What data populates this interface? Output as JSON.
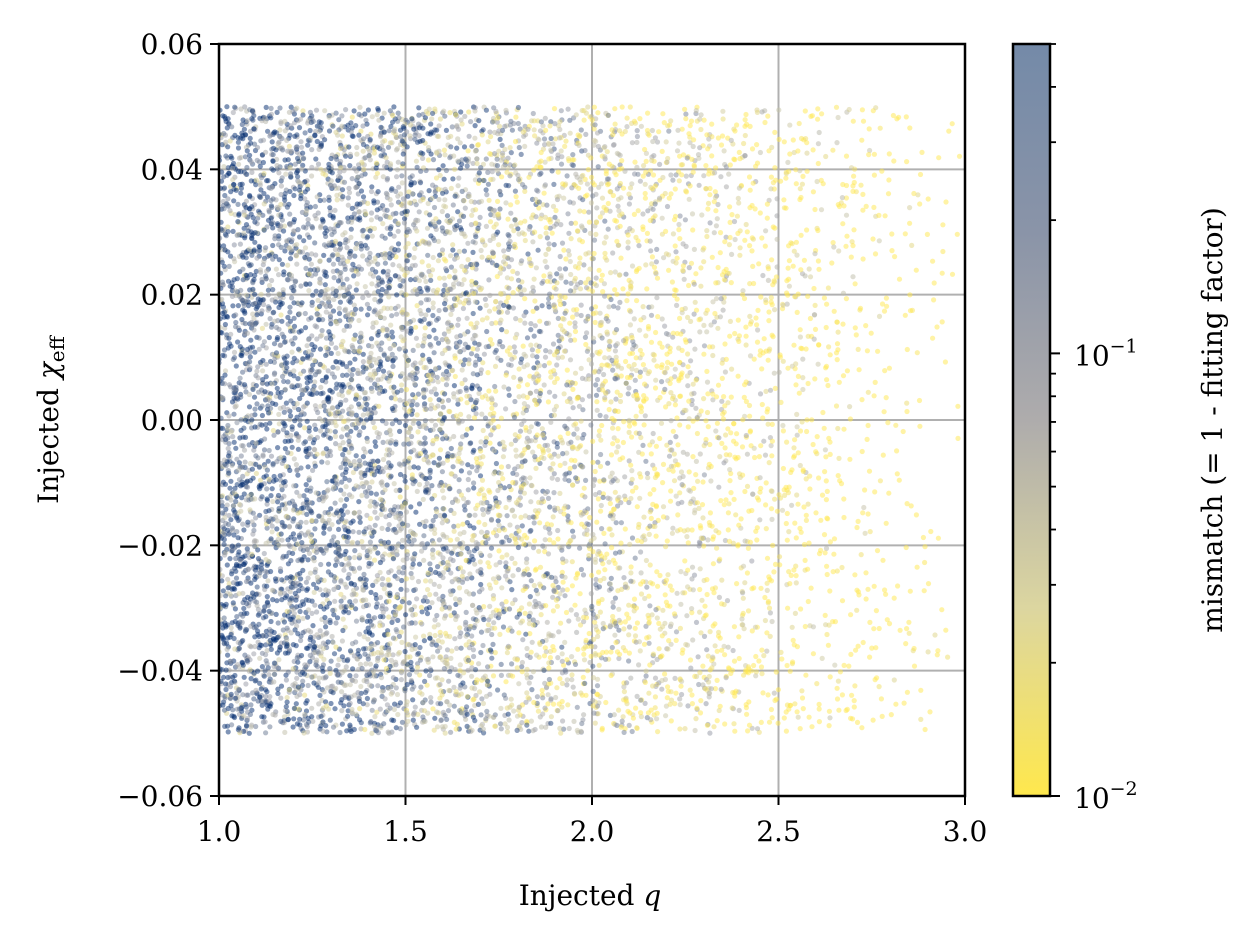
{
  "chart_data": {
    "type": "scatter",
    "title": "",
    "xlabel": "Injected q",
    "ylabel": "Injected χ_eff",
    "xlim": [
      1.0,
      3.0
    ],
    "ylim": [
      -0.06,
      0.06
    ],
    "x_ticks": [
      "1.0",
      "1.5",
      "2.0",
      "2.5",
      "3.0"
    ],
    "y_ticks": [
      "0.06",
      "0.04",
      "0.02",
      "0.00",
      "−0.02",
      "−0.04",
      "−0.06"
    ],
    "grid": true,
    "colorbar": {
      "label": "mismatch (= 1 - fitting factor)",
      "scale": "log",
      "range": [
        0.01,
        0.5
      ],
      "ticks": [
        {
          "value": 0.1,
          "base": "10",
          "exp": "−1"
        },
        {
          "value": 0.01,
          "base": "10",
          "exp": "−2"
        }
      ],
      "colormap": [
        "#ffe84d",
        "#c9c6a8",
        "#9a9ca6",
        "#5f718f",
        "#002a6e"
      ]
    },
    "points": {
      "x_range": [
        1.0,
        3.0
      ],
      "y_range": [
        -0.05,
        0.05
      ],
      "density": "most dense near q = 1, thinning toward q = 3",
      "mismatch_trend": "high (blue) near q = 1.0–1.5, low (yellow) for q > 2.0"
    }
  }
}
